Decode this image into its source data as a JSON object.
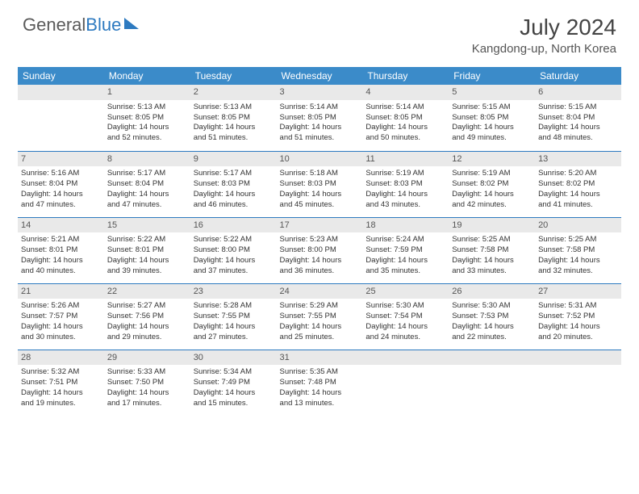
{
  "brand": {
    "word1": "General",
    "word2": "Blue"
  },
  "title": "July 2024",
  "location": "Kangdong-up, North Korea",
  "colors": {
    "header_bg": "#3b8bc9",
    "border": "#2d7ac0",
    "daynum_bg": "#e9e9e9",
    "text": "#333333"
  },
  "daysOfWeek": [
    "Sunday",
    "Monday",
    "Tuesday",
    "Wednesday",
    "Thursday",
    "Friday",
    "Saturday"
  ],
  "weeks": [
    [
      {
        "n": "",
        "l1": "",
        "l2": "",
        "l3": "",
        "l4": ""
      },
      {
        "n": "1",
        "l1": "Sunrise: 5:13 AM",
        "l2": "Sunset: 8:05 PM",
        "l3": "Daylight: 14 hours",
        "l4": "and 52 minutes."
      },
      {
        "n": "2",
        "l1": "Sunrise: 5:13 AM",
        "l2": "Sunset: 8:05 PM",
        "l3": "Daylight: 14 hours",
        "l4": "and 51 minutes."
      },
      {
        "n": "3",
        "l1": "Sunrise: 5:14 AM",
        "l2": "Sunset: 8:05 PM",
        "l3": "Daylight: 14 hours",
        "l4": "and 51 minutes."
      },
      {
        "n": "4",
        "l1": "Sunrise: 5:14 AM",
        "l2": "Sunset: 8:05 PM",
        "l3": "Daylight: 14 hours",
        "l4": "and 50 minutes."
      },
      {
        "n": "5",
        "l1": "Sunrise: 5:15 AM",
        "l2": "Sunset: 8:05 PM",
        "l3": "Daylight: 14 hours",
        "l4": "and 49 minutes."
      },
      {
        "n": "6",
        "l1": "Sunrise: 5:15 AM",
        "l2": "Sunset: 8:04 PM",
        "l3": "Daylight: 14 hours",
        "l4": "and 48 minutes."
      }
    ],
    [
      {
        "n": "7",
        "l1": "Sunrise: 5:16 AM",
        "l2": "Sunset: 8:04 PM",
        "l3": "Daylight: 14 hours",
        "l4": "and 47 minutes."
      },
      {
        "n": "8",
        "l1": "Sunrise: 5:17 AM",
        "l2": "Sunset: 8:04 PM",
        "l3": "Daylight: 14 hours",
        "l4": "and 47 minutes."
      },
      {
        "n": "9",
        "l1": "Sunrise: 5:17 AM",
        "l2": "Sunset: 8:03 PM",
        "l3": "Daylight: 14 hours",
        "l4": "and 46 minutes."
      },
      {
        "n": "10",
        "l1": "Sunrise: 5:18 AM",
        "l2": "Sunset: 8:03 PM",
        "l3": "Daylight: 14 hours",
        "l4": "and 45 minutes."
      },
      {
        "n": "11",
        "l1": "Sunrise: 5:19 AM",
        "l2": "Sunset: 8:03 PM",
        "l3": "Daylight: 14 hours",
        "l4": "and 43 minutes."
      },
      {
        "n": "12",
        "l1": "Sunrise: 5:19 AM",
        "l2": "Sunset: 8:02 PM",
        "l3": "Daylight: 14 hours",
        "l4": "and 42 minutes."
      },
      {
        "n": "13",
        "l1": "Sunrise: 5:20 AM",
        "l2": "Sunset: 8:02 PM",
        "l3": "Daylight: 14 hours",
        "l4": "and 41 minutes."
      }
    ],
    [
      {
        "n": "14",
        "l1": "Sunrise: 5:21 AM",
        "l2": "Sunset: 8:01 PM",
        "l3": "Daylight: 14 hours",
        "l4": "and 40 minutes."
      },
      {
        "n": "15",
        "l1": "Sunrise: 5:22 AM",
        "l2": "Sunset: 8:01 PM",
        "l3": "Daylight: 14 hours",
        "l4": "and 39 minutes."
      },
      {
        "n": "16",
        "l1": "Sunrise: 5:22 AM",
        "l2": "Sunset: 8:00 PM",
        "l3": "Daylight: 14 hours",
        "l4": "and 37 minutes."
      },
      {
        "n": "17",
        "l1": "Sunrise: 5:23 AM",
        "l2": "Sunset: 8:00 PM",
        "l3": "Daylight: 14 hours",
        "l4": "and 36 minutes."
      },
      {
        "n": "18",
        "l1": "Sunrise: 5:24 AM",
        "l2": "Sunset: 7:59 PM",
        "l3": "Daylight: 14 hours",
        "l4": "and 35 minutes."
      },
      {
        "n": "19",
        "l1": "Sunrise: 5:25 AM",
        "l2": "Sunset: 7:58 PM",
        "l3": "Daylight: 14 hours",
        "l4": "and 33 minutes."
      },
      {
        "n": "20",
        "l1": "Sunrise: 5:25 AM",
        "l2": "Sunset: 7:58 PM",
        "l3": "Daylight: 14 hours",
        "l4": "and 32 minutes."
      }
    ],
    [
      {
        "n": "21",
        "l1": "Sunrise: 5:26 AM",
        "l2": "Sunset: 7:57 PM",
        "l3": "Daylight: 14 hours",
        "l4": "and 30 minutes."
      },
      {
        "n": "22",
        "l1": "Sunrise: 5:27 AM",
        "l2": "Sunset: 7:56 PM",
        "l3": "Daylight: 14 hours",
        "l4": "and 29 minutes."
      },
      {
        "n": "23",
        "l1": "Sunrise: 5:28 AM",
        "l2": "Sunset: 7:55 PM",
        "l3": "Daylight: 14 hours",
        "l4": "and 27 minutes."
      },
      {
        "n": "24",
        "l1": "Sunrise: 5:29 AM",
        "l2": "Sunset: 7:55 PM",
        "l3": "Daylight: 14 hours",
        "l4": "and 25 minutes."
      },
      {
        "n": "25",
        "l1": "Sunrise: 5:30 AM",
        "l2": "Sunset: 7:54 PM",
        "l3": "Daylight: 14 hours",
        "l4": "and 24 minutes."
      },
      {
        "n": "26",
        "l1": "Sunrise: 5:30 AM",
        "l2": "Sunset: 7:53 PM",
        "l3": "Daylight: 14 hours",
        "l4": "and 22 minutes."
      },
      {
        "n": "27",
        "l1": "Sunrise: 5:31 AM",
        "l2": "Sunset: 7:52 PM",
        "l3": "Daylight: 14 hours",
        "l4": "and 20 minutes."
      }
    ],
    [
      {
        "n": "28",
        "l1": "Sunrise: 5:32 AM",
        "l2": "Sunset: 7:51 PM",
        "l3": "Daylight: 14 hours",
        "l4": "and 19 minutes."
      },
      {
        "n": "29",
        "l1": "Sunrise: 5:33 AM",
        "l2": "Sunset: 7:50 PM",
        "l3": "Daylight: 14 hours",
        "l4": "and 17 minutes."
      },
      {
        "n": "30",
        "l1": "Sunrise: 5:34 AM",
        "l2": "Sunset: 7:49 PM",
        "l3": "Daylight: 14 hours",
        "l4": "and 15 minutes."
      },
      {
        "n": "31",
        "l1": "Sunrise: 5:35 AM",
        "l2": "Sunset: 7:48 PM",
        "l3": "Daylight: 14 hours",
        "l4": "and 13 minutes."
      },
      {
        "n": "",
        "l1": "",
        "l2": "",
        "l3": "",
        "l4": ""
      },
      {
        "n": "",
        "l1": "",
        "l2": "",
        "l3": "",
        "l4": ""
      },
      {
        "n": "",
        "l1": "",
        "l2": "",
        "l3": "",
        "l4": ""
      }
    ]
  ]
}
